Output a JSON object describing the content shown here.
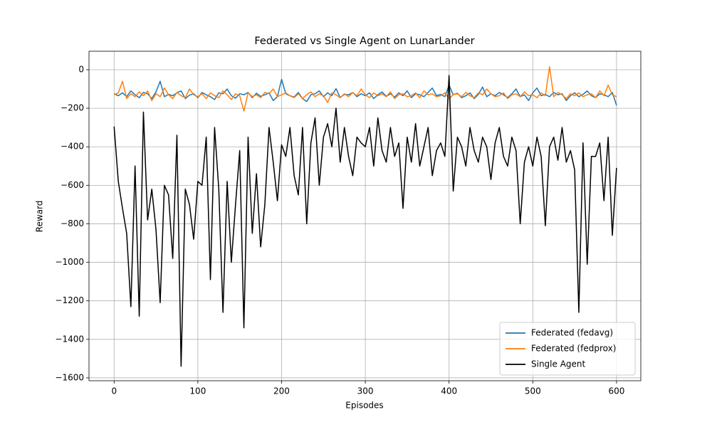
{
  "chart_data": {
    "type": "line",
    "title": "Federated vs Single Agent on LunarLander",
    "xlabel": "Episodes",
    "ylabel": "Reward",
    "x": [
      0,
      5,
      10,
      15,
      20,
      25,
      30,
      35,
      40,
      45,
      50,
      55,
      60,
      65,
      70,
      75,
      80,
      85,
      90,
      95,
      100,
      105,
      110,
      115,
      120,
      125,
      130,
      135,
      140,
      145,
      150,
      155,
      160,
      165,
      170,
      175,
      180,
      185,
      190,
      195,
      200,
      205,
      210,
      215,
      220,
      225,
      230,
      235,
      240,
      245,
      250,
      255,
      260,
      265,
      270,
      275,
      280,
      285,
      290,
      295,
      300,
      305,
      310,
      315,
      320,
      325,
      330,
      335,
      340,
      345,
      350,
      355,
      360,
      365,
      370,
      375,
      380,
      385,
      390,
      395,
      400,
      405,
      410,
      415,
      420,
      425,
      430,
      435,
      440,
      445,
      450,
      455,
      460,
      465,
      470,
      475,
      480,
      485,
      490,
      495,
      500,
      505,
      510,
      515,
      520,
      525,
      530,
      535,
      540,
      545,
      550,
      555,
      560,
      565,
      570,
      575,
      580,
      585,
      590,
      595,
      600
    ],
    "series": [
      {
        "name": "Federated (fedavg)",
        "color": "#1f77b4",
        "values": [
          -125,
          -135,
          -120,
          -140,
          -110,
          -130,
          -145,
          -118,
          -125,
          -150,
          -115,
          -60,
          -140,
          -128,
          -135,
          -120,
          -110,
          -150,
          -132,
          -125,
          -145,
          -118,
          -130,
          -140,
          -155,
          -120,
          -125,
          -100,
          -135,
          -148,
          -125,
          -130,
          -118,
          -145,
          -122,
          -138,
          -130,
          -120,
          -160,
          -140,
          -50,
          -125,
          -135,
          -142,
          -118,
          -150,
          -165,
          -130,
          -125,
          -110,
          -140,
          -120,
          -135,
          -98,
          -145,
          -128,
          -130,
          -118,
          -140,
          -125,
          -135,
          -120,
          -150,
          -130,
          -115,
          -138,
          -125,
          -142,
          -120,
          -135,
          -110,
          -145,
          -125,
          -130,
          -140,
          -118,
          -95,
          -135,
          -128,
          -140,
          -80,
          -130,
          -122,
          -145,
          -135,
          -120,
          -150,
          -128,
          -90,
          -140,
          -125,
          -135,
          -118,
          -130,
          -145,
          -125,
          -100,
          -140,
          -130,
          -160,
          -120,
          -95,
          -135,
          -128,
          -140,
          -118,
          -130,
          -125,
          -160,
          -135,
          -120,
          -140,
          -128,
          -110,
          -135,
          -145,
          -125,
          -130,
          -140,
          -118,
          -185
        ]
      },
      {
        "name": "Federated (fedprox)",
        "color": "#ff7f0e",
        "values": [
          -130,
          -120,
          -60,
          -150,
          -125,
          -140,
          -115,
          -135,
          -110,
          -160,
          -125,
          -140,
          -95,
          -130,
          -150,
          -118,
          -135,
          -145,
          -100,
          -130,
          -140,
          -125,
          -150,
          -120,
          -135,
          -145,
          -110,
          -130,
          -155,
          -125,
          -135,
          -215,
          -120,
          -140,
          -130,
          -145,
          -118,
          -125,
          -100,
          -140,
          -130,
          -120,
          -135,
          -145,
          -125,
          -150,
          -130,
          -115,
          -140,
          -125,
          -135,
          -170,
          -120,
          -130,
          -145,
          -125,
          -140,
          -118,
          -135,
          -100,
          -130,
          -145,
          -120,
          -135,
          -125,
          -140,
          -115,
          -150,
          -130,
          -125,
          -140,
          -135,
          -120,
          -145,
          -110,
          -130,
          -125,
          -140,
          -135,
          -120,
          -150,
          -130,
          -125,
          -140,
          -118,
          -135,
          -145,
          -120,
          -130,
          -100,
          -125,
          -140,
          -135,
          -120,
          -150,
          -130,
          -125,
          -140,
          -115,
          -135,
          -130,
          -145,
          -120,
          -135,
          15,
          -140,
          -118,
          -130,
          -150,
          -125,
          -135,
          -120,
          -140,
          -130,
          -125,
          -145,
          -110,
          -135,
          -80,
          -130,
          -140
        ]
      },
      {
        "name": "Single Agent",
        "color": "#000000",
        "values": [
          -295,
          -580,
          -720,
          -850,
          -1230,
          -500,
          -1280,
          -220,
          -780,
          -620,
          -830,
          -1210,
          -600,
          -650,
          -980,
          -340,
          -1540,
          -620,
          -700,
          -880,
          -580,
          -600,
          -350,
          -1090,
          -300,
          -620,
          -1260,
          -580,
          -1000,
          -700,
          -420,
          -1340,
          -350,
          -850,
          -540,
          -920,
          -700,
          -300,
          -480,
          -680,
          -390,
          -450,
          -300,
          -550,
          -650,
          -300,
          -800,
          -380,
          -250,
          -600,
          -350,
          -280,
          -400,
          -200,
          -480,
          -300,
          -450,
          -550,
          -350,
          -380,
          -400,
          -300,
          -500,
          -250,
          -420,
          -480,
          -300,
          -450,
          -380,
          -720,
          -350,
          -480,
          -280,
          -500,
          -400,
          -300,
          -550,
          -420,
          -380,
          -450,
          -30,
          -630,
          -350,
          -400,
          -500,
          -300,
          -420,
          -480,
          -350,
          -400,
          -570,
          -380,
          -300,
          -450,
          -500,
          -350,
          -420,
          -800,
          -480,
          -400,
          -500,
          -350,
          -450,
          -810,
          -400,
          -350,
          -470,
          -300,
          -480,
          -420,
          -520,
          -1260,
          -380,
          -1010,
          -450,
          -450,
          -380,
          -680,
          -350,
          -860,
          -510
        ]
      }
    ],
    "xlim": [
      -30,
      629
    ],
    "ylim": [
      -1615,
      96
    ],
    "xticks": [
      0,
      100,
      200,
      300,
      400,
      500,
      600
    ],
    "yticks": [
      {
        "value": -1600,
        "label": "−1600"
      },
      {
        "value": -1400,
        "label": "−1400"
      },
      {
        "value": -1200,
        "label": "−1200"
      },
      {
        "value": -1000,
        "label": "−1000"
      },
      {
        "value": -800,
        "label": "−800"
      },
      {
        "value": -600,
        "label": "−600"
      },
      {
        "value": -400,
        "label": "−400"
      },
      {
        "value": -200,
        "label": "−200"
      },
      0
    ],
    "grid": true,
    "legend": "lower right"
  }
}
